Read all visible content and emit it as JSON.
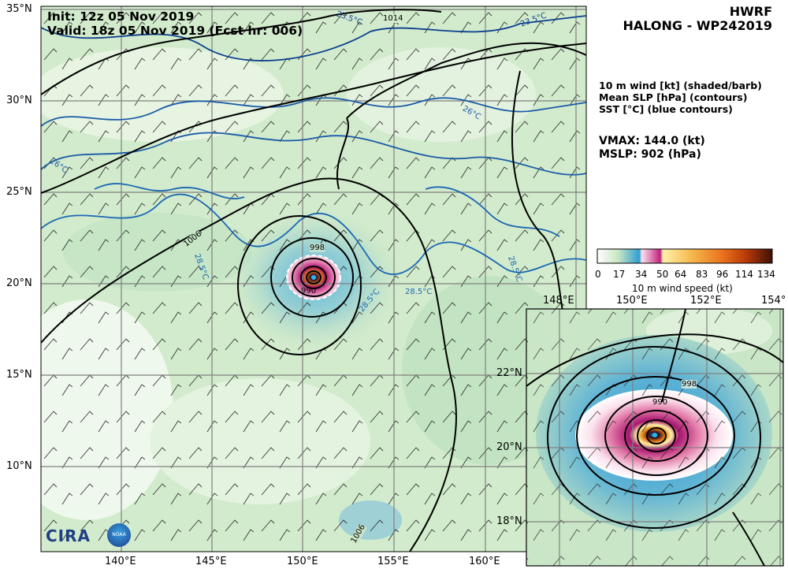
{
  "header": {
    "model": "HWRF",
    "storm": "HALONG - WP242019"
  },
  "init_text": "Init:   12z 05 Nov 2019",
  "valid_text": "Valid: 18z 05 Nov 2019 (Fcst hr: 006)",
  "legend": {
    "line1": "10 m wind [kt] (shaded/barb)",
    "line2": "Mean SLP [hPa] (contours)",
    "line3": "SST [°C] (blue contours)"
  },
  "stats": {
    "vmax": "VMAX: 144.0 (kt)",
    "mslp": "MSLP:  902 (hPa)"
  },
  "colorbar": {
    "ticks": [
      "0",
      "17",
      "34",
      "50",
      "64",
      "83",
      "96",
      "114",
      "134"
    ],
    "label": "10 m wind speed (kt)",
    "colors": [
      "#ffffff",
      "#c8e6c3",
      "#2f9fd1",
      "#fbe1ec",
      "#c1227c",
      "#fff2a8",
      "#f19a21",
      "#d94f0b",
      "#3d1106"
    ]
  },
  "main_map": {
    "lat_labels": [
      "35°N",
      "30°N",
      "25°N",
      "20°N",
      "15°N",
      "10°N"
    ],
    "lon_labels": [
      "140°E",
      "145°E",
      "150°E",
      "155°E",
      "160°E"
    ],
    "slp_labels": [
      "1014",
      "1006",
      "998",
      "990",
      "1006"
    ],
    "sst_labels": [
      "23.5°C",
      "23.5°C",
      "26°C",
      "26°C",
      "28.5°C",
      "28.5°C",
      "28.5°C",
      "28.5°C"
    ]
  },
  "inset_map": {
    "lat_labels": [
      "22°N",
      "20°N",
      "18°N"
    ],
    "lon_labels": [
      "148°E",
      "150°E",
      "152°E",
      "154°"
    ],
    "slp_labels": [
      "998",
      "990"
    ]
  },
  "logos": {
    "cira": "CIRA",
    "noaa": "NOAA"
  }
}
